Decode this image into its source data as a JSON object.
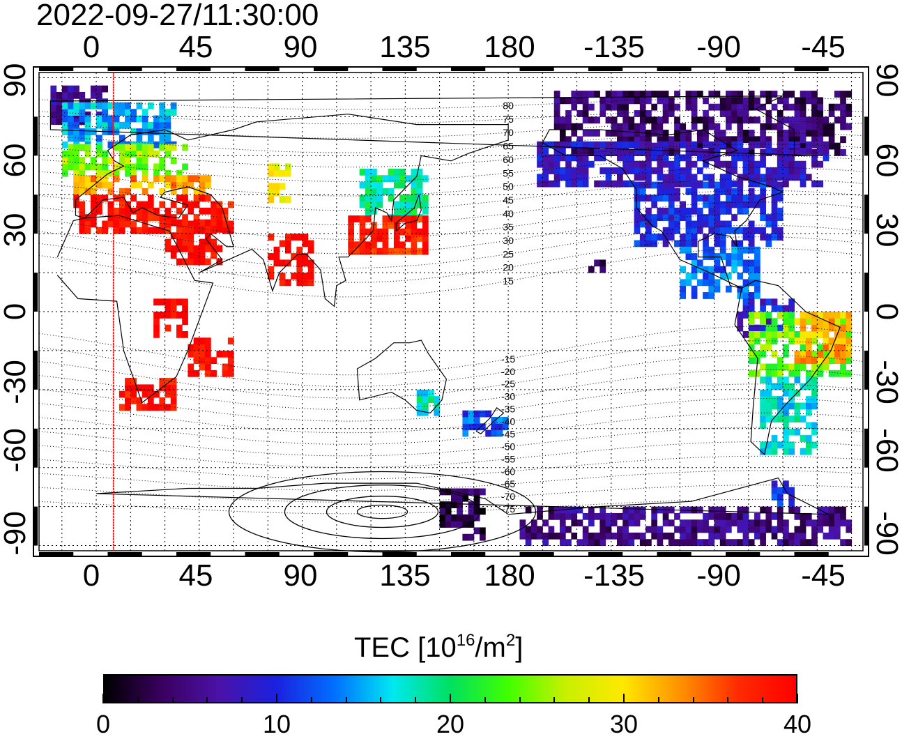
{
  "timestamp": "2022-09-27/11:30:00",
  "axes": {
    "lon_top": [
      "0",
      "45",
      "90",
      "135",
      "180",
      "-135",
      "-90",
      "-45"
    ],
    "lon_bottom": [
      "0",
      "45",
      "90",
      "135",
      "180",
      "-135",
      "-90",
      "-45"
    ],
    "lat_left": [
      "90",
      "60",
      "30",
      "0",
      "-30",
      "-60",
      "-90"
    ],
    "lat_right": [
      "90",
      "60",
      "30",
      "0",
      "-30",
      "-60",
      "-90"
    ]
  },
  "map": {
    "projection": "equirectangular",
    "lon_range": [
      -25,
      335
    ],
    "lat_range": [
      -92,
      92
    ],
    "grid": true,
    "grid_step_deg": 15,
    "marker_longitude": 7.5,
    "contour_labels": [
      "80",
      "75",
      "70",
      "65",
      "60",
      "55",
      "50",
      "45",
      "40",
      "35",
      "30",
      "25",
      "20",
      "15",
      "-15",
      "-20",
      "-25",
      "-30",
      "-35",
      "-40",
      "-45",
      "-50",
      "-55",
      "-60",
      "-65",
      "-70",
      "-75"
    ]
  },
  "colorbar": {
    "title": "TEC  [10",
    "title_sup1": "16",
    "title_mid": "/m",
    "title_sup2": "2",
    "title_end": "]",
    "min": 0,
    "max": 40,
    "tick_labels": [
      "0",
      "10",
      "20",
      "30",
      "40"
    ],
    "colors": [
      "#000000",
      "#3a0060",
      "#4a12a8",
      "#1a22e0",
      "#0070ff",
      "#00e8f0",
      "#00e060",
      "#40ff00",
      "#c8f000",
      "#ffe800",
      "#ff9000",
      "#ff2a00",
      "#ff0000"
    ]
  },
  "tec_regions": [
    {
      "lon": [
        -20,
        5
      ],
      "lat": [
        72,
        86
      ],
      "tec": 6
    },
    {
      "lon": [
        -15,
        35
      ],
      "lat": [
        63,
        80
      ],
      "tec": 15
    },
    {
      "lon": [
        -15,
        40
      ],
      "lat": [
        52,
        63
      ],
      "tec": 25
    },
    {
      "lon": [
        -10,
        50
      ],
      "lat": [
        45,
        52
      ],
      "tec": 33
    },
    {
      "lon": [
        -10,
        60
      ],
      "lat": [
        30,
        45
      ],
      "tec": 39
    },
    {
      "lon": [
        30,
        55
      ],
      "lat": [
        18,
        35
      ],
      "tec": 40
    },
    {
      "lon": [
        75,
        85
      ],
      "lat": [
        42,
        55
      ],
      "tec": 29
    },
    {
      "lon": [
        115,
        145
      ],
      "lat": [
        35,
        55
      ],
      "tec": 19
    },
    {
      "lon": [
        110,
        145
      ],
      "lat": [
        22,
        35
      ],
      "tec": 38
    },
    {
      "lon": [
        75,
        95
      ],
      "lat": [
        10,
        28
      ],
      "tec": 40
    },
    {
      "lon": [
        25,
        40
      ],
      "lat": [
        -10,
        5
      ],
      "tec": 40
    },
    {
      "lon": [
        10,
        35
      ],
      "lat": [
        -38,
        -26
      ],
      "tec": 39
    },
    {
      "lon": [
        40,
        60
      ],
      "lat": [
        -25,
        -10
      ],
      "tec": 39
    },
    {
      "lon": [
        140,
        150
      ],
      "lat": [
        -40,
        -30
      ],
      "tec": 18
    },
    {
      "lon": [
        160,
        180
      ],
      "lat": [
        -48,
        -38
      ],
      "tec": 12
    },
    {
      "lon": [
        150,
        170
      ],
      "lat": [
        -88,
        -70
      ],
      "tec": 3
    },
    {
      "lon": [
        185,
        330
      ],
      "lat": [
        -90,
        -75
      ],
      "tec": 5
    },
    {
      "lon": [
        200,
        330
      ],
      "lat": [
        60,
        85
      ],
      "tec": 4
    },
    {
      "lon": [
        190,
        320
      ],
      "lat": [
        48,
        65
      ],
      "tec": 8
    },
    {
      "lon": [
        235,
        300
      ],
      "lat": [
        25,
        48
      ],
      "tec": 10
    },
    {
      "lon": [
        255,
        290
      ],
      "lat": [
        5,
        25
      ],
      "tec": 13
    },
    {
      "lon": [
        280,
        305
      ],
      "lat": [
        -10,
        5
      ],
      "tec": 9
    },
    {
      "lon": [
        285,
        330
      ],
      "lat": [
        -25,
        0
      ],
      "tec": 24
    },
    {
      "lon": [
        305,
        330
      ],
      "lat": [
        -20,
        0
      ],
      "tec": 32
    },
    {
      "lon": [
        290,
        315
      ],
      "lat": [
        -55,
        -25
      ],
      "tec": 17
    },
    {
      "lon": [
        295,
        305
      ],
      "lat": [
        -75,
        -65
      ],
      "tec": 10
    },
    {
      "lon": [
        215,
        225
      ],
      "lat": [
        15,
        20
      ],
      "tec": 3
    }
  ]
}
